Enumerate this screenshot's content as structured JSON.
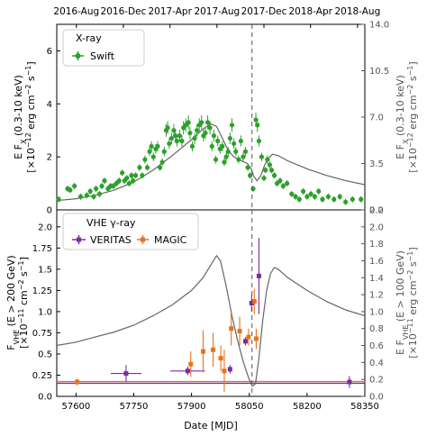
{
  "top_axis": {
    "labels": [
      "2016-Aug",
      "2016-Dec",
      "2017-Apr",
      "2017-Aug",
      "2017-Dec",
      "2018-Apr",
      "2018-Aug"
    ],
    "positions_mjd": [
      57601,
      57723,
      57844,
      57966,
      58088,
      58209,
      58331
    ]
  },
  "chart_data": [
    {
      "type": "scatter",
      "panel": "upper",
      "legend_title": "X-ray",
      "legend_placement": "top-left",
      "xlim": [
        57550,
        58350
      ],
      "ylim": [
        0,
        7
      ],
      "yticks": [
        0,
        2,
        4,
        6
      ],
      "ylabel_lines": [
        "E F",
        "X",
        " (0.3-10 keV)",
        "[×10",
        "−12",
        " erg cm",
        "−2",
        " s",
        "−1",
        "]"
      ],
      "right_axis": {
        "ylim": [
          0,
          14
        ],
        "ticks": [
          "0.0",
          "3.5",
          "7.0",
          "10.5",
          "14.0"
        ],
        "label_lines": [
          "E F",
          "X",
          " (0.3-10 keV)",
          "[×10",
          "−12",
          " erg cm",
          "−2",
          " s",
          "−1",
          "]"
        ]
      },
      "series": [
        {
          "name": "Swift",
          "color": "#2ca02c",
          "points": [
            [
              57555,
              0.4
            ],
            [
              57578,
              0.8
            ],
            [
              57585,
              0.75
            ],
            [
              57596,
              0.9
            ],
            [
              57612,
              0.5
            ],
            [
              57628,
              0.55
            ],
            [
              57637,
              0.7
            ],
            [
              57646,
              0.5
            ],
            [
              57652,
              0.8
            ],
            [
              57661,
              0.6
            ],
            [
              57667,
              0.9
            ],
            [
              57674,
              1.1
            ],
            [
              57683,
              0.8
            ],
            [
              57690,
              0.9
            ],
            [
              57697,
              0.9
            ],
            [
              57705,
              1.0
            ],
            [
              57712,
              1.1
            ],
            [
              57720,
              1.4
            ],
            [
              57726,
              1.1
            ],
            [
              57732,
              1.2
            ],
            [
              57738,
              1.0
            ],
            [
              57744,
              1.3
            ],
            [
              57748,
              1.1
            ],
            [
              57755,
              1.3
            ],
            [
              57765,
              1.6
            ],
            [
              57772,
              1.3
            ],
            [
              57779,
              1.9
            ],
            [
              57785,
              1.6
            ],
            [
              57791,
              2.2
            ],
            [
              57796,
              2.4
            ],
            [
              57801,
              2.0
            ],
            [
              57807,
              2.3
            ],
            [
              57812,
              2.4
            ],
            [
              57818,
              1.6
            ],
            [
              57824,
              1.8
            ],
            [
              57829,
              2.2
            ],
            [
              57834,
              3.0
            ],
            [
              57838,
              3.1
            ],
            [
              57842,
              2.5
            ],
            [
              57848,
              2.7
            ],
            [
              57854,
              3.0
            ],
            [
              57858,
              2.8
            ],
            [
              57862,
              2.6
            ],
            [
              57869,
              2.8
            ],
            [
              57875,
              2.6
            ],
            [
              57879,
              3.1
            ],
            [
              57885,
              3.2
            ],
            [
              57892,
              3.3
            ],
            [
              57896,
              2.9
            ],
            [
              57902,
              2.4
            ],
            [
              57908,
              2.7
            ],
            [
              57914,
              3.0
            ],
            [
              57920,
              3.2
            ],
            [
              57926,
              3.3
            ],
            [
              57931,
              2.8
            ],
            [
              57936,
              2.9
            ],
            [
              57942,
              3.3
            ],
            [
              57948,
              3.1
            ],
            [
              57953,
              2.4
            ],
            [
              57958,
              2.8
            ],
            [
              57963,
              1.9
            ],
            [
              57968,
              2.6
            ],
            [
              57974,
              2.3
            ],
            [
              57980,
              2.4
            ],
            [
              57985,
              1.8
            ],
            [
              57990,
              2.0
            ],
            [
              57995,
              2.2
            ],
            [
              58000,
              2.7
            ],
            [
              58005,
              3.2
            ],
            [
              58010,
              2.5
            ],
            [
              58015,
              2.2
            ],
            [
              58022,
              1.9
            ],
            [
              58028,
              2.6
            ],
            [
              58034,
              2.0
            ],
            [
              58040,
              2.2
            ],
            [
              58046,
              1.6
            ],
            [
              58052,
              1.3
            ],
            [
              58060,
              0.8
            ],
            [
              58067,
              3.4
            ],
            [
              58071,
              3.2
            ],
            [
              58075,
              2.6
            ],
            [
              58082,
              2.0
            ],
            [
              58088,
              1.2
            ],
            [
              58092,
              1.5
            ],
            [
              58097,
              1.9
            ],
            [
              58103,
              1.7
            ],
            [
              58108,
              1.5
            ],
            [
              58115,
              1.3
            ],
            [
              58122,
              1.0
            ],
            [
              58130,
              1.1
            ],
            [
              58138,
              0.9
            ],
            [
              58148,
              1.0
            ],
            [
              58160,
              0.6
            ],
            [
              58170,
              0.5
            ],
            [
              58180,
              0.4
            ],
            [
              58190,
              0.7
            ],
            [
              58200,
              0.5
            ],
            [
              58210,
              0.6
            ],
            [
              58220,
              0.5
            ],
            [
              58230,
              0.7
            ],
            [
              58240,
              0.4
            ],
            [
              58255,
              0.5
            ],
            [
              58270,
              0.4
            ],
            [
              58285,
              0.5
            ],
            [
              58300,
              0.3
            ],
            [
              58318,
              0.4
            ],
            [
              58340,
              0.4
            ]
          ]
        }
      ],
      "model_curve": {
        "color": "#666666",
        "points": [
          [
            57550,
            0.35
          ],
          [
            57600,
            0.42
          ],
          [
            57650,
            0.55
          ],
          [
            57700,
            0.75
          ],
          [
            57750,
            1.05
          ],
          [
            57800,
            1.5
          ],
          [
            57850,
            2.05
          ],
          [
            57900,
            2.65
          ],
          [
            57930,
            3.05
          ],
          [
            57950,
            3.25
          ],
          [
            57965,
            3.15
          ],
          [
            57980,
            2.7
          ],
          [
            57995,
            2.25
          ],
          [
            58010,
            2.0
          ],
          [
            58030,
            1.85
          ],
          [
            58045,
            1.75
          ],
          [
            58055,
            1.55
          ],
          [
            58062,
            1.25
          ],
          [
            58070,
            1.1
          ],
          [
            58080,
            1.3
          ],
          [
            58090,
            1.7
          ],
          [
            58100,
            1.95
          ],
          [
            58110,
            2.1
          ],
          [
            58125,
            2.05
          ],
          [
            58150,
            1.85
          ],
          [
            58200,
            1.55
          ],
          [
            58250,
            1.3
          ],
          [
            58300,
            1.1
          ],
          [
            58350,
            0.95
          ]
        ]
      },
      "event_line_mjd": 58057
    },
    {
      "type": "scatter",
      "panel": "lower",
      "legend_title": "VHE γ-ray",
      "legend_placement": "top-left",
      "xlabel": "Date [MJD]",
      "xlim": [
        57550,
        58350
      ],
      "xticks": [
        57600,
        57750,
        57900,
        58050,
        58200,
        58350
      ],
      "ylim": [
        0,
        2.2
      ],
      "yticks": [
        "0.0",
        "0.25",
        "0.5",
        "0.75",
        "1.0",
        "1.25",
        "1.5",
        "1.75",
        "2.0"
      ],
      "ylabel_lines": [
        "F",
        "VHE",
        " (E > 200 GeV)",
        "[×10",
        "−11",
        " cm",
        "−2",
        " s",
        "−1",
        "]"
      ],
      "right_axis": {
        "ylim": [
          0,
          2.2
        ],
        "ticks": [
          "0.0",
          "0.2",
          "0.4",
          "0.6",
          "0.8",
          "1.0",
          "1.2",
          "1.4",
          "1.6",
          "1.8",
          "2.0",
          "2.2"
        ],
        "label_lines": [
          "E F",
          "VHE",
          " (E > 100 GeV)",
          "[×10",
          "−11",
          " erg cm",
          "−2",
          " s",
          "−1",
          "]"
        ]
      },
      "series": [
        {
          "name": "VERITAS",
          "color": "#7b2c9e",
          "points": [
            {
              "x": 57730,
              "y": 0.27,
              "xerr": 40,
              "yerr": 0.1
            },
            {
              "x": 57890,
              "y": 0.3,
              "xerr": 45,
              "yerr": 0.05
            },
            {
              "x": 58000,
              "y": 0.32,
              "xerr": 5,
              "yerr": 0.05
            },
            {
              "x": 58040,
              "y": 0.65,
              "xerr": 5,
              "yerr": 0.05
            },
            {
              "x": 58056,
              "y": 1.1,
              "xerr": 5,
              "yerr": 0.1
            },
            {
              "x": 58075,
              "y": 1.42,
              "xerr": 3,
              "yerr": 0.45
            },
            {
              "x": 58310,
              "y": 0.17,
              "xerr": 6,
              "yerr": 0.07
            }
          ]
        },
        {
          "name": "MAGIC",
          "color": "#e8721c",
          "points": [
            {
              "x": 57603,
              "y": 0.17,
              "xerr": 0,
              "yerr": 0.04
            },
            {
              "x": 57898,
              "y": 0.38,
              "xerr": 0,
              "yerr": 0.15
            },
            {
              "x": 57930,
              "y": 0.53,
              "xerr": 0,
              "yerr": 0.25
            },
            {
              "x": 57956,
              "y": 0.55,
              "xerr": 0,
              "yerr": 0.2
            },
            {
              "x": 57976,
              "y": 0.45,
              "xerr": 0,
              "yerr": 0.15
            },
            {
              "x": 57985,
              "y": 0.3,
              "xerr": 0,
              "yerr": 0.25
            },
            {
              "x": 58003,
              "y": 0.8,
              "xerr": 0,
              "yerr": 0.2
            },
            {
              "x": 58025,
              "y": 0.77,
              "xerr": 0,
              "yerr": 0.17
            },
            {
              "x": 58048,
              "y": 0.7,
              "xerr": 0,
              "yerr": 0.1
            },
            {
              "x": 58063,
              "y": 1.12,
              "xerr": 0,
              "yerr": 0.15
            },
            {
              "x": 58068,
              "y": 0.68,
              "xerr": 0,
              "yerr": 0.12
            }
          ]
        }
      ],
      "model_curve": {
        "color": "#666666",
        "points": [
          [
            57550,
            0.6
          ],
          [
            57600,
            0.64
          ],
          [
            57650,
            0.7
          ],
          [
            57700,
            0.76
          ],
          [
            57750,
            0.84
          ],
          [
            57800,
            0.95
          ],
          [
            57850,
            1.08
          ],
          [
            57900,
            1.25
          ],
          [
            57930,
            1.4
          ],
          [
            57950,
            1.55
          ],
          [
            57965,
            1.66
          ],
          [
            57975,
            1.6
          ],
          [
            57990,
            1.3
          ],
          [
            58005,
            0.95
          ],
          [
            58020,
            0.65
          ],
          [
            58035,
            0.4
          ],
          [
            58048,
            0.22
          ],
          [
            58058,
            0.12
          ],
          [
            58066,
            0.15
          ],
          [
            58075,
            0.45
          ],
          [
            58085,
            0.9
          ],
          [
            58095,
            1.25
          ],
          [
            58105,
            1.45
          ],
          [
            58115,
            1.52
          ],
          [
            58125,
            1.5
          ],
          [
            58150,
            1.4
          ],
          [
            58200,
            1.25
          ],
          [
            58250,
            1.12
          ],
          [
            58300,
            1.02
          ],
          [
            58350,
            0.95
          ]
        ]
      },
      "horizontal_bands": [
        {
          "y": 0.155,
          "color": "#7b2c9e"
        },
        {
          "y": 0.175,
          "color": "#e8721c"
        }
      ],
      "event_line_mjd": 58057
    }
  ]
}
